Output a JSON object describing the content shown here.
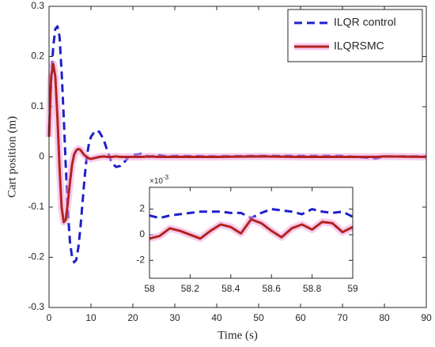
{
  "chart_data": [
    {
      "type": "line",
      "xlabel": "Time (s)",
      "ylabel": "Cart position (m)",
      "xlim": [
        0,
        90
      ],
      "xticks": [
        0,
        10,
        20,
        30,
        40,
        50,
        60,
        70,
        80,
        90
      ],
      "ylim": [
        -0.3,
        0.3
      ],
      "yticks": [
        -0.3,
        -0.2,
        -0.1,
        0,
        0.1,
        0.2,
        0.3
      ],
      "legend": "upper right",
      "grid": false,
      "x": [
        0,
        0.5,
        1,
        1.5,
        2,
        2.5,
        3,
        3.5,
        4,
        4.5,
        5,
        5.5,
        6,
        6.5,
        7,
        7.5,
        8,
        8.5,
        9,
        9.5,
        10,
        11,
        12,
        13,
        14,
        15,
        16,
        17,
        18,
        19,
        20,
        22,
        24,
        26,
        28,
        30,
        40,
        50,
        60,
        70,
        78,
        80,
        90
      ],
      "series": [
        {
          "name": "ILQR control",
          "color": "#1f1fcc",
          "dashed": true,
          "values": [
            0.05,
            0.15,
            0.22,
            0.255,
            0.26,
            0.24,
            0.17,
            0.08,
            -0.02,
            -0.11,
            -0.17,
            -0.2,
            -0.21,
            -0.205,
            -0.18,
            -0.14,
            -0.09,
            -0.04,
            0.0,
            0.025,
            0.04,
            0.052,
            0.05,
            0.035,
            0.01,
            -0.012,
            -0.02,
            -0.018,
            -0.01,
            0.0,
            0.004,
            0.006,
            0.0,
            0.004,
            0.001,
            0.002,
            0.001,
            0.002,
            0.002,
            0.002,
            -0.003,
            0.001,
            0.001
          ]
        },
        {
          "name": "ILQRSMC",
          "color": "#b2241f",
          "dashed": false,
          "values": [
            0.04,
            0.16,
            0.185,
            0.16,
            0.08,
            -0.02,
            -0.1,
            -0.13,
            -0.125,
            -0.09,
            -0.05,
            -0.015,
            0.005,
            0.013,
            0.016,
            0.014,
            0.008,
            0.003,
            0.0,
            -0.003,
            -0.004,
            -0.002,
            0.0,
            0.001,
            0.0,
            0.0,
            0.001,
            0.0,
            0.0,
            0.0,
            0.0,
            0.0,
            0.001,
            0.0,
            0.0,
            0.0,
            0.0,
            0.001,
            0.0,
            0.0,
            0.0,
            0.001,
            0.0
          ]
        }
      ]
    },
    {
      "type": "line",
      "y_offset_base": "×10",
      "y_offset_exponent": "-3",
      "xlim": [
        58,
        59
      ],
      "xticks": [
        58,
        58.2,
        58.4,
        58.6,
        58.8,
        59
      ],
      "ylim": [
        -3.4,
        3.7
      ],
      "yticks": [
        -2,
        0,
        2
      ],
      "x": [
        58,
        58.05,
        58.1,
        58.15,
        58.2,
        58.25,
        58.3,
        58.35,
        58.4,
        58.45,
        58.5,
        58.55,
        58.6,
        58.65,
        58.7,
        58.75,
        58.8,
        58.85,
        58.9,
        58.95,
        59
      ],
      "series": [
        {
          "name": "ILQR control",
          "color": "#1f1fcc",
          "dashed": true,
          "values": [
            1.5,
            1.3,
            1.5,
            1.6,
            1.7,
            1.8,
            1.8,
            1.8,
            1.7,
            1.7,
            1.3,
            1.7,
            2.0,
            1.9,
            1.8,
            1.6,
            2.0,
            1.8,
            1.7,
            1.8,
            1.4
          ]
        },
        {
          "name": "ILQRSMC",
          "color": "#b2241f",
          "dashed": false,
          "values": [
            -0.3,
            -0.1,
            0.5,
            0.3,
            0.0,
            -0.3,
            0.3,
            0.8,
            0.6,
            0.1,
            1.2,
            0.9,
            0.3,
            -0.2,
            0.5,
            0.8,
            0.4,
            1.0,
            0.9,
            0.2,
            0.6
          ]
        }
      ]
    }
  ]
}
